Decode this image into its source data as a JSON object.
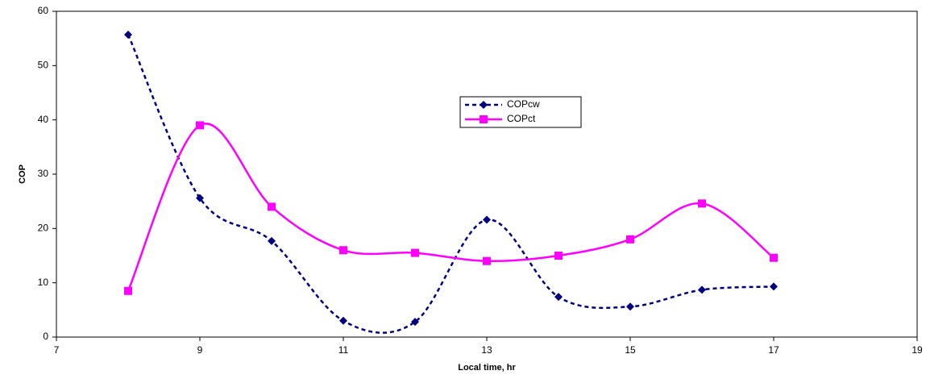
{
  "chart_data": {
    "type": "line",
    "x_label": "Local time, hr",
    "y_label": "COP",
    "x": [
      8,
      9,
      10,
      11,
      12,
      13,
      14,
      15,
      16,
      17
    ],
    "series": [
      {
        "name": "COPcw",
        "color": "#000080",
        "line_style": "dashed",
        "marker": "diamond",
        "values": [
          55.7,
          25.6,
          17.7,
          3.0,
          2.8,
          21.6,
          7.4,
          5.6,
          8.7,
          9.3
        ]
      },
      {
        "name": "COPct",
        "color": "#ff00ff",
        "line_style": "solid",
        "marker": "square",
        "values": [
          8.5,
          39,
          24,
          16,
          15.5,
          14,
          15,
          18,
          24.6,
          14.6
        ]
      }
    ],
    "smooth": true,
    "xlim": [
      7,
      19
    ],
    "xticks": [
      7,
      9,
      11,
      13,
      15,
      17,
      19
    ],
    "ylim": [
      0,
      60
    ],
    "yticks": [
      0,
      10,
      20,
      30,
      40,
      50,
      60
    ]
  }
}
